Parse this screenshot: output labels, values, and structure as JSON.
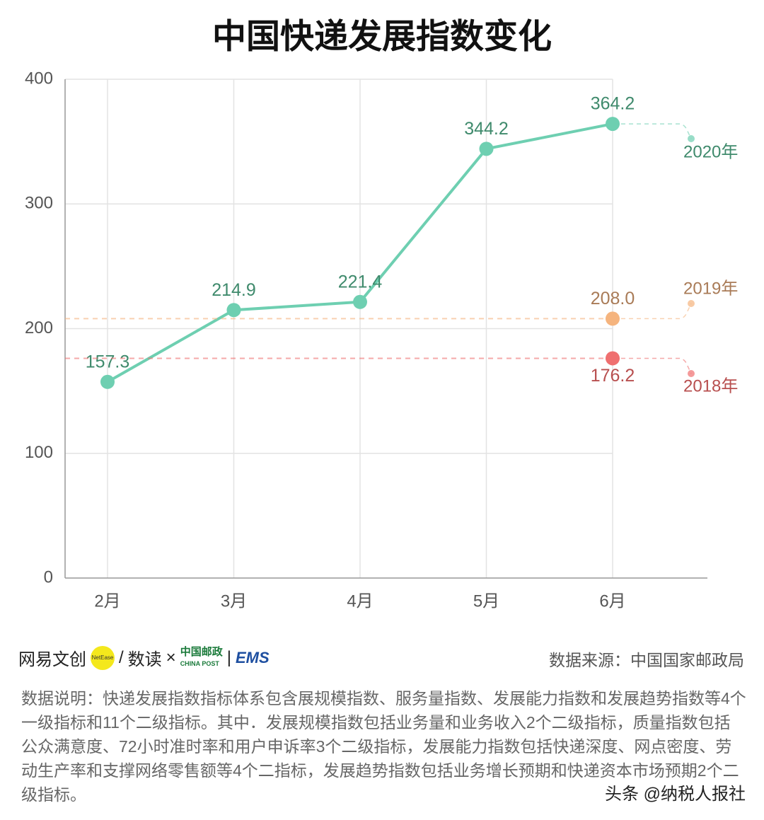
{
  "chart_data": {
    "type": "line",
    "title": "中国快递发展指数变化",
    "categories": [
      "2月",
      "3月",
      "4月",
      "5月",
      "6月"
    ],
    "series": [
      {
        "name": "2020年",
        "color": "#6ecfb1",
        "values": [
          157.3,
          214.9,
          221.4,
          344.2,
          364.2
        ]
      },
      {
        "name": "2019年",
        "color": "#f5b47e",
        "values": [
          null,
          null,
          null,
          null,
          208.0
        ],
        "value_labels": [
          null,
          null,
          null,
          null,
          "208.0"
        ]
      },
      {
        "name": "2018年",
        "color": "#ef6f6f",
        "values": [
          null,
          null,
          null,
          null,
          176.2
        ]
      }
    ],
    "ylim": [
      0,
      400
    ],
    "yticks": [
      0,
      100,
      200,
      300,
      400
    ],
    "grid": true
  },
  "footer": {
    "logo_netease": "网易文创",
    "logo_netease_en": "NetEase",
    "logo_shudu": "数读",
    "logo_chinapost": "中国邮政",
    "logo_chinapost_en": "CHINA POST",
    "logo_ems": "EMS",
    "source": "数据来源：中国国家邮政局",
    "note": "数据说明：快递发展指数指标体系包含展规模指数、服务量指数、发展能力指数和发展趋势指数等4个一级指标和11个二级指标。其中．发展规模指数包括业务量和业务收入2个二级指标，质量指数包括公众满意度、72小时准时率和用户申诉率3个二级指标，发展能力指数包括快递深度、网点密度、劳动生产率和支撑网络零售额等4个二指标，发展趋势指数包括业务增长预期和快递资本市场预期2个二级指标。",
    "watermark": "头条 @纳税人报社"
  }
}
